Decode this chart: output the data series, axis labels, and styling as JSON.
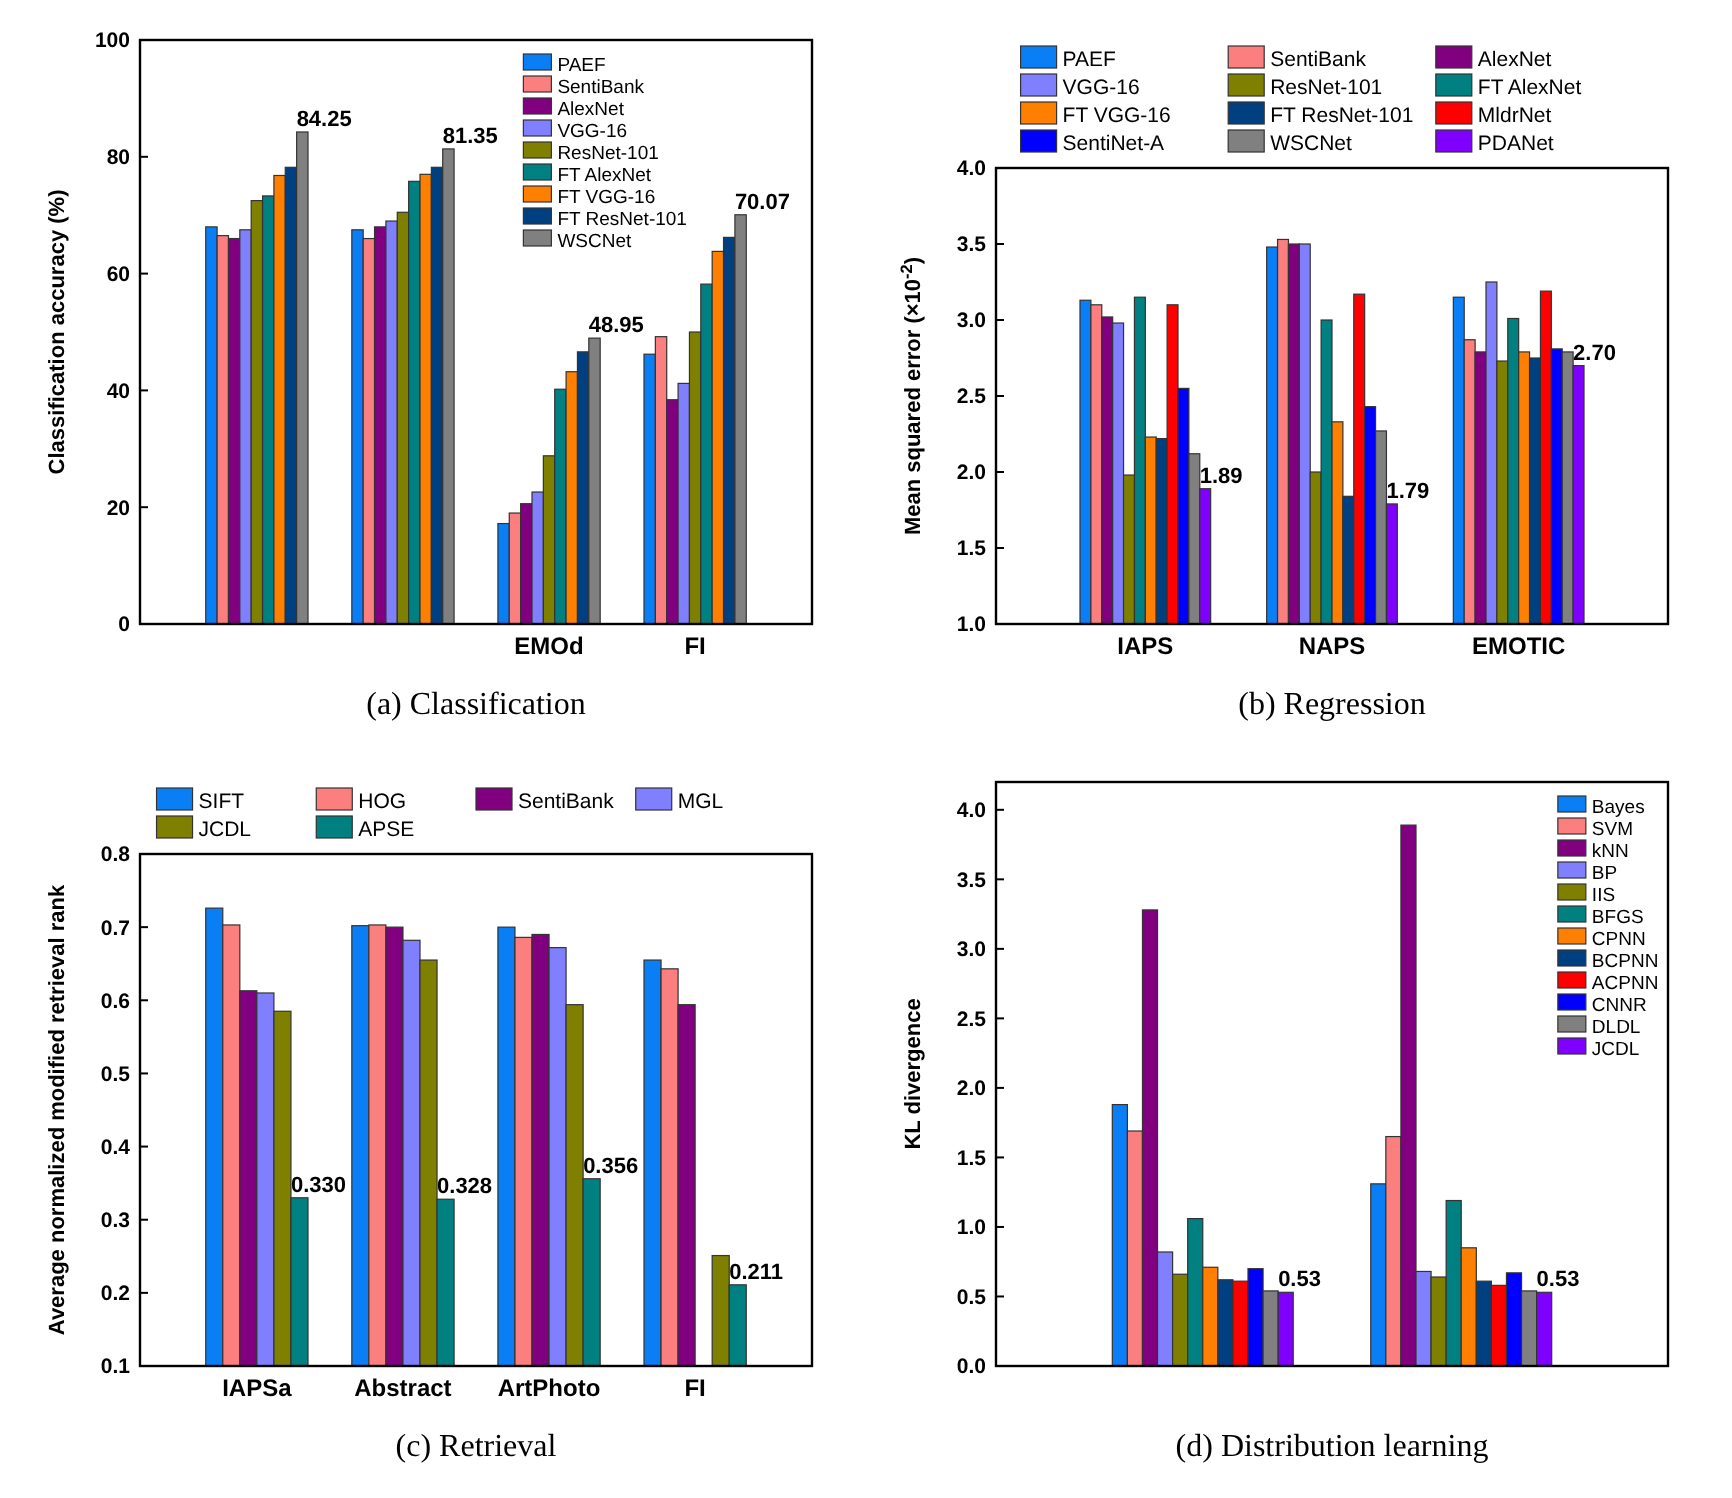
{
  "chart_data": [
    {
      "type": "bar",
      "subtitle": "(a)  Classification",
      "ylabel": "Classification accuracy (%)",
      "categories": [
        null,
        null,
        "EMOd",
        "FI"
      ],
      "ylim": [
        0,
        100
      ],
      "yticks": [
        0,
        20,
        40,
        60,
        80,
        100
      ],
      "legend": "top right",
      "series": [
        {
          "name": "PAEF",
          "color": "#0a7ff5",
          "values": [
            68,
            67.5,
            17.2,
            46.2
          ]
        },
        {
          "name": "SentiBank",
          "color": "#fb7f7f",
          "values": [
            66.5,
            66,
            19,
            49.2
          ]
        },
        {
          "name": "AlexNet",
          "color": "#800080",
          "values": [
            66,
            68,
            20.6,
            38.4
          ]
        },
        {
          "name": "VGG-16",
          "color": "#8080ff",
          "values": [
            67.5,
            69,
            22.6,
            41.2
          ]
        },
        {
          "name": "ResNet-101",
          "color": "#808000",
          "values": [
            72.5,
            70.5,
            28.8,
            50
          ]
        },
        {
          "name": "FT AlexNet",
          "color": "#008080",
          "values": [
            73.3,
            75.8,
            40.2,
            58.2
          ]
        },
        {
          "name": "FT VGG-16",
          "color": "#ff8000",
          "values": [
            76.8,
            77,
            43.2,
            63.8
          ]
        },
        {
          "name": "FT ResNet-101",
          "color": "#004080",
          "values": [
            78.2,
            78.2,
            46.6,
            66.2
          ]
        },
        {
          "name": "WSCNet",
          "color": "#808080",
          "values": [
            84.25,
            81.35,
            48.95,
            70.07
          ],
          "value_labels": [
            "84.25",
            "81.35",
            "48.95",
            "70.07"
          ]
        }
      ]
    },
    {
      "type": "bar",
      "subtitle": "(b)  Regression",
      "ylabel": "Mean squared error (×10$^{-2}$)",
      "categories": [
        "IAPS",
        "NAPS",
        "EMOTIC"
      ],
      "ylim": [
        1,
        4
      ],
      "yticks": [
        {
          "value": 1,
          "label": "1.0"
        },
        1.5,
        {
          "value": 2,
          "label": "2.0"
        },
        2.5,
        {
          "value": 3,
          "label": "3.0"
        },
        3.5,
        {
          "value": 4,
          "label": "4.0"
        }
      ],
      "legend": "top",
      "series": [
        {
          "name": "PAEF",
          "color": "#0a7ff5",
          "values": [
            3.13,
            3.48,
            3.15
          ]
        },
        {
          "name": "SentiBank",
          "color": "#fb7f7f",
          "values": [
            3.1,
            3.53,
            2.87
          ]
        },
        {
          "name": "AlexNet",
          "color": "#800080",
          "values": [
            3.02,
            3.5,
            2.79
          ]
        },
        {
          "name": "VGG-16",
          "color": "#8080ff",
          "values": [
            2.98,
            3.5,
            3.25
          ]
        },
        {
          "name": "ResNet-101",
          "color": "#808000",
          "values": [
            1.98,
            2.0,
            2.73
          ]
        },
        {
          "name": "FT AlexNet",
          "color": "#008080",
          "values": [
            3.15,
            3.0,
            3.01
          ]
        },
        {
          "name": "FT VGG-16",
          "color": "#ff8000",
          "values": [
            2.23,
            2.33,
            2.79
          ]
        },
        {
          "name": "FT ResNet-101",
          "color": "#004080",
          "values": [
            2.22,
            1.84,
            2.75
          ]
        },
        {
          "name": "MldrNet",
          "color": "#ff0000",
          "values": [
            3.1,
            3.17,
            3.19
          ]
        },
        {
          "name": "SentiNet-A",
          "color": "#0000ff",
          "values": [
            2.55,
            2.43,
            2.81
          ]
        },
        {
          "name": "WSCNet",
          "color": "#808080",
          "values": [
            2.12,
            2.27,
            2.79
          ]
        },
        {
          "name": "PDANet",
          "color": "#8000ff",
          "values": [
            1.89,
            1.79,
            2.7
          ],
          "value_labels": [
            "1.89",
            "1.79",
            "2.70"
          ]
        }
      ]
    },
    {
      "type": "bar",
      "subtitle": "(c)  Retrieval",
      "ylabel": "Average normalized modified retrieval rank",
      "categories": [
        "IAPSa",
        "Abstract",
        "ArtPhoto",
        "FI"
      ],
      "ylim": [
        0.1,
        0.8
      ],
      "yticks": [
        0.1,
        0.2,
        0.3,
        0.4,
        0.5,
        0.6,
        0.7,
        0.8
      ],
      "legend": "top",
      "series": [
        {
          "name": "SIFT",
          "color": "#0a7ff5",
          "values": [
            0.726,
            0.702,
            0.7,
            0.655
          ]
        },
        {
          "name": "HOG",
          "color": "#fb7f7f",
          "values": [
            0.703,
            0.703,
            0.686,
            0.643
          ]
        },
        {
          "name": "SentiBank",
          "color": "#800080",
          "values": [
            0.613,
            0.7,
            0.69,
            0.594
          ]
        },
        {
          "name": "MGL",
          "color": "#8080ff",
          "values": [
            0.61,
            0.682,
            0.672,
            null
          ]
        },
        {
          "name": "JCDL",
          "color": "#808000",
          "values": [
            0.585,
            0.655,
            0.594,
            0.251
          ]
        },
        {
          "name": "APSE",
          "color": "#008080",
          "values": [
            0.33,
            0.328,
            0.356,
            0.211
          ],
          "value_labels": [
            "0.330",
            "0.328",
            "0.356",
            "0.211"
          ]
        }
      ]
    },
    {
      "type": "bar",
      "subtitle": "(d)  Distribution learning",
      "ylabel": "KL divergence",
      "categories": [
        null,
        null
      ],
      "ylim": [
        0,
        4.2
      ],
      "yticks": [
        {
          "value": 0,
          "label": "0.0"
        },
        0.5,
        {
          "value": 1,
          "label": "1.0"
        },
        1.5,
        {
          "value": 2,
          "label": "2.0"
        },
        2.5,
        {
          "value": 3,
          "label": "3.0"
        },
        3.5,
        {
          "value": 4,
          "label": "4.0"
        }
      ],
      "legend": "top right",
      "series": [
        {
          "name": "Bayes",
          "color": "#0a7ff5",
          "values": [
            1.88,
            1.31
          ]
        },
        {
          "name": "SVM",
          "color": "#fb7f7f",
          "values": [
            1.69,
            1.65
          ]
        },
        {
          "name": "kNN",
          "color": "#800080",
          "values": [
            3.28,
            3.89
          ]
        },
        {
          "name": "BP",
          "color": "#8080ff",
          "values": [
            0.82,
            0.68
          ]
        },
        {
          "name": "IIS",
          "color": "#808000",
          "values": [
            0.66,
            0.64
          ]
        },
        {
          "name": "BFGS",
          "color": "#008080",
          "values": [
            1.06,
            1.19
          ]
        },
        {
          "name": "CPNN",
          "color": "#ff8000",
          "values": [
            0.71,
            0.85
          ]
        },
        {
          "name": "BCPNN",
          "color": "#004080",
          "values": [
            0.62,
            0.61
          ]
        },
        {
          "name": "ACPNN",
          "color": "#ff0000",
          "values": [
            0.61,
            0.58
          ]
        },
        {
          "name": "CNNR",
          "color": "#0000ff",
          "values": [
            0.7,
            0.67
          ]
        },
        {
          "name": "DLDL",
          "color": "#808080",
          "values": [
            0.54,
            0.54
          ]
        },
        {
          "name": "JCDL",
          "color": "#8000ff",
          "values": [
            0.53,
            0.53
          ],
          "value_labels": [
            "0.53",
            "0.53"
          ]
        }
      ]
    }
  ]
}
